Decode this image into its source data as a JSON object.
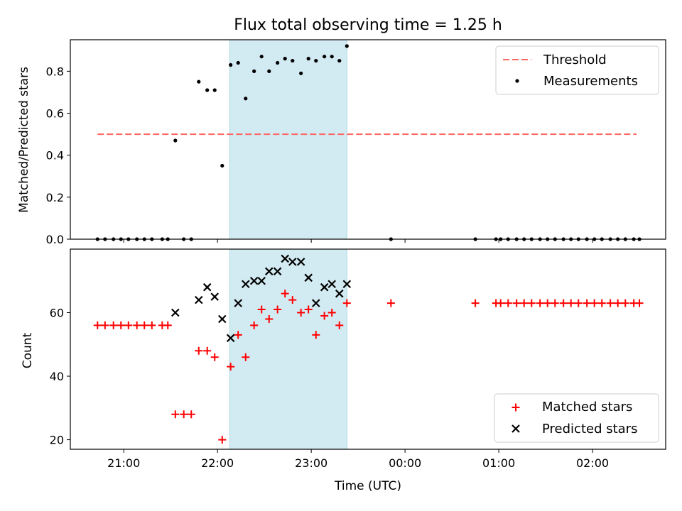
{
  "chart_data": [
    {
      "type": "scatter",
      "panel": "top",
      "title": "Flux total observing time = 1.25 h",
      "xlabel": "",
      "ylabel": "Matched/Predicted stars",
      "ylim": [
        0.0,
        0.95
      ],
      "yticks": [
        0.0,
        0.2,
        0.4,
        0.6,
        0.8
      ],
      "ytick_labels": [
        "0.0",
        "0.2",
        "0.4",
        "0.6",
        "0.8"
      ],
      "xlim_hours": [
        20.43,
        26.78
      ],
      "xticks_hours": [
        21,
        22,
        23,
        24,
        25,
        26
      ],
      "xtick_labels": [
        "21:00",
        "22:00",
        "23:00",
        "00:00",
        "01:00",
        "02:00"
      ],
      "shaded_span_hours": [
        22.13,
        23.38
      ],
      "shaded_color": "#add8e6",
      "legend_position": "upper right",
      "series": [
        {
          "name": "Threshold",
          "kind": "dashed-line",
          "color": "#ff6666",
          "x": [
            20.72,
            26.47
          ],
          "y": [
            0.5,
            0.5
          ]
        },
        {
          "name": "Measurements",
          "kind": "dots",
          "color": "#000000",
          "points": [
            [
              20.72,
              0.0
            ],
            [
              20.8,
              0.0
            ],
            [
              20.89,
              0.0
            ],
            [
              20.97,
              0.0
            ],
            [
              21.05,
              0.0
            ],
            [
              21.14,
              0.0
            ],
            [
              21.22,
              0.0
            ],
            [
              21.3,
              0.0
            ],
            [
              21.41,
              0.0
            ],
            [
              21.47,
              0.0
            ],
            [
              21.55,
              0.47
            ],
            [
              21.64,
              0.0
            ],
            [
              21.72,
              0.0
            ],
            [
              21.8,
              0.75
            ],
            [
              21.89,
              0.71
            ],
            [
              21.97,
              0.71
            ],
            [
              22.05,
              0.35
            ],
            [
              22.14,
              0.83
            ],
            [
              22.22,
              0.84
            ],
            [
              22.3,
              0.67
            ],
            [
              22.39,
              0.8
            ],
            [
              22.47,
              0.87
            ],
            [
              22.55,
              0.8
            ],
            [
              22.64,
              0.84
            ],
            [
              22.72,
              0.86
            ],
            [
              22.8,
              0.85
            ],
            [
              22.89,
              0.79
            ],
            [
              22.97,
              0.86
            ],
            [
              23.05,
              0.85
            ],
            [
              23.14,
              0.87
            ],
            [
              23.22,
              0.87
            ],
            [
              23.3,
              0.85
            ],
            [
              23.38,
              0.92
            ],
            [
              23.85,
              0.0
            ],
            [
              24.75,
              0.0
            ],
            [
              24.97,
              0.0
            ],
            [
              25.02,
              0.0
            ],
            [
              25.1,
              0.0
            ],
            [
              25.19,
              0.0
            ],
            [
              25.27,
              0.0
            ],
            [
              25.35,
              0.0
            ],
            [
              25.44,
              0.0
            ],
            [
              25.52,
              0.0
            ],
            [
              25.6,
              0.0
            ],
            [
              25.69,
              0.0
            ],
            [
              25.77,
              0.0
            ],
            [
              25.85,
              0.0
            ],
            [
              25.94,
              0.0
            ],
            [
              26.02,
              0.0
            ],
            [
              26.1,
              0.0
            ],
            [
              26.19,
              0.0
            ],
            [
              26.27,
              0.0
            ],
            [
              26.35,
              0.0
            ],
            [
              26.44,
              0.0
            ],
            [
              26.5,
              0.0
            ]
          ]
        }
      ]
    },
    {
      "type": "scatter",
      "panel": "bottom",
      "title": "",
      "xlabel": "Time (UTC)",
      "ylabel": "Count",
      "ylim": [
        17,
        80
      ],
      "yticks": [
        20,
        40,
        60
      ],
      "ytick_labels": [
        "20",
        "40",
        "60"
      ],
      "xlim_hours": [
        20.43,
        26.78
      ],
      "xticks_hours": [
        21,
        22,
        23,
        24,
        25,
        26
      ],
      "xtick_labels": [
        "21:00",
        "22:00",
        "23:00",
        "00:00",
        "01:00",
        "02:00"
      ],
      "shaded_span_hours": [
        22.13,
        23.38
      ],
      "shaded_color": "#add8e6",
      "legend_position": "lower right",
      "series": [
        {
          "name": "Matched stars",
          "marker": "plus",
          "color": "#ff0000",
          "points": [
            [
              20.72,
              56
            ],
            [
              20.8,
              56
            ],
            [
              20.89,
              56
            ],
            [
              20.97,
              56
            ],
            [
              21.05,
              56
            ],
            [
              21.14,
              56
            ],
            [
              21.22,
              56
            ],
            [
              21.3,
              56
            ],
            [
              21.41,
              56
            ],
            [
              21.47,
              56
            ],
            [
              21.55,
              28
            ],
            [
              21.64,
              28
            ],
            [
              21.72,
              28
            ],
            [
              21.8,
              48
            ],
            [
              21.89,
              48
            ],
            [
              21.97,
              46
            ],
            [
              22.05,
              20
            ],
            [
              22.14,
              43
            ],
            [
              22.22,
              53
            ],
            [
              22.3,
              46
            ],
            [
              22.39,
              56
            ],
            [
              22.47,
              61
            ],
            [
              22.55,
              58
            ],
            [
              22.64,
              61
            ],
            [
              22.72,
              66
            ],
            [
              22.8,
              64
            ],
            [
              22.89,
              60
            ],
            [
              22.97,
              61
            ],
            [
              23.05,
              53
            ],
            [
              23.14,
              59
            ],
            [
              23.22,
              60
            ],
            [
              23.3,
              56
            ],
            [
              23.38,
              63
            ],
            [
              23.85,
              63
            ],
            [
              24.75,
              63
            ],
            [
              24.97,
              63
            ],
            [
              25.02,
              63
            ],
            [
              25.1,
              63
            ],
            [
              25.19,
              63
            ],
            [
              25.27,
              63
            ],
            [
              25.35,
              63
            ],
            [
              25.44,
              63
            ],
            [
              25.52,
              63
            ],
            [
              25.6,
              63
            ],
            [
              25.69,
              63
            ],
            [
              25.77,
              63
            ],
            [
              25.85,
              63
            ],
            [
              25.94,
              63
            ],
            [
              26.02,
              63
            ],
            [
              26.1,
              63
            ],
            [
              26.19,
              63
            ],
            [
              26.27,
              63
            ],
            [
              26.35,
              63
            ],
            [
              26.44,
              63
            ],
            [
              26.5,
              63
            ]
          ]
        },
        {
          "name": "Predicted stars",
          "marker": "x",
          "color": "#000000",
          "points": [
            [
              21.55,
              60
            ],
            [
              21.8,
              64
            ],
            [
              21.89,
              68
            ],
            [
              21.97,
              65
            ],
            [
              22.05,
              58
            ],
            [
              22.14,
              52
            ],
            [
              22.22,
              63
            ],
            [
              22.3,
              69
            ],
            [
              22.39,
              70
            ],
            [
              22.47,
              70
            ],
            [
              22.55,
              73
            ],
            [
              22.64,
              73
            ],
            [
              22.72,
              77
            ],
            [
              22.8,
              76
            ],
            [
              22.89,
              76
            ],
            [
              22.97,
              71
            ],
            [
              23.05,
              63
            ],
            [
              23.14,
              68
            ],
            [
              23.22,
              69
            ],
            [
              23.3,
              66
            ],
            [
              23.38,
              69
            ]
          ]
        }
      ]
    }
  ]
}
